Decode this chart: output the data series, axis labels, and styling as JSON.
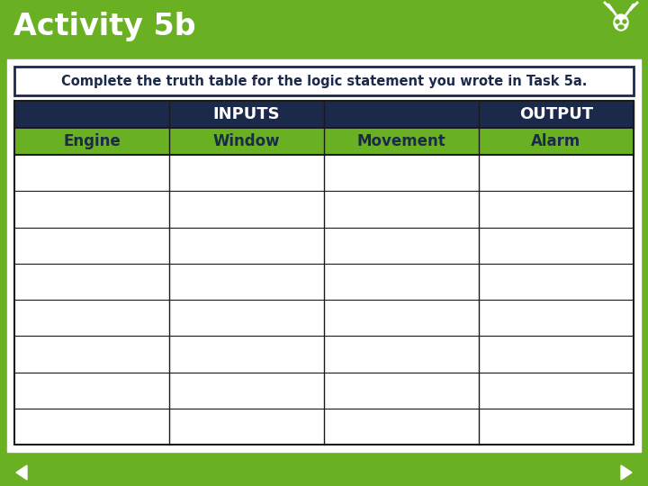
{
  "title": "Activity 5b",
  "subtitle": "Complete the truth table for the logic statement you wrote in Task 5a.",
  "header_row2": [
    "Engine",
    "Window",
    "Movement",
    "Alarm"
  ],
  "num_data_rows": 8,
  "colors": {
    "title_bg": "#6ab023",
    "dark_navy": "#1b2a4a",
    "green_header": "#6ab023",
    "white": "#ffffff",
    "border": "#1a1a1a",
    "subtitle_border": "#1b2a4a",
    "bottom_bar": "#6ab023"
  },
  "title_font_color": "#ffffff",
  "subtitle_font_color": "#1b2a4a",
  "header_font_color": "#ffffff",
  "col_header_font_color": "#1b2a4a",
  "figsize": [
    7.2,
    5.4
  ],
  "dpi": 100
}
